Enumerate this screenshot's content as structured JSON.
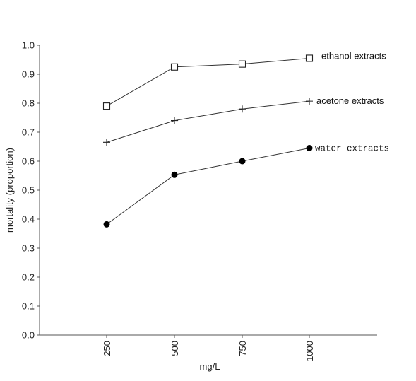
{
  "chart_data": {
    "type": "line",
    "xlabel": "mg/L",
    "ylabel": "mortality (proportion)",
    "ylim": [
      0.0,
      1.0
    ],
    "yticks": [
      "0.0",
      "0.1",
      "0.2",
      "0.3",
      "0.4",
      "0.5",
      "0.6",
      "0.7",
      "0.8",
      "0.9",
      "1.0"
    ],
    "categories": [
      "250",
      "500",
      "750",
      "1000"
    ],
    "legend_placement": "inline labels at series ends",
    "grid": false,
    "series": [
      {
        "name": "ethanol extracts",
        "marker": "open-square",
        "values": [
          0.79,
          0.925,
          0.935,
          0.955
        ]
      },
      {
        "name": "acetone extracts",
        "marker": "plus",
        "values": [
          0.665,
          0.74,
          0.78,
          0.807
        ]
      },
      {
        "name": "water extracts",
        "marker": "filled-circle",
        "values": [
          0.382,
          0.553,
          0.6,
          0.645
        ]
      }
    ]
  }
}
